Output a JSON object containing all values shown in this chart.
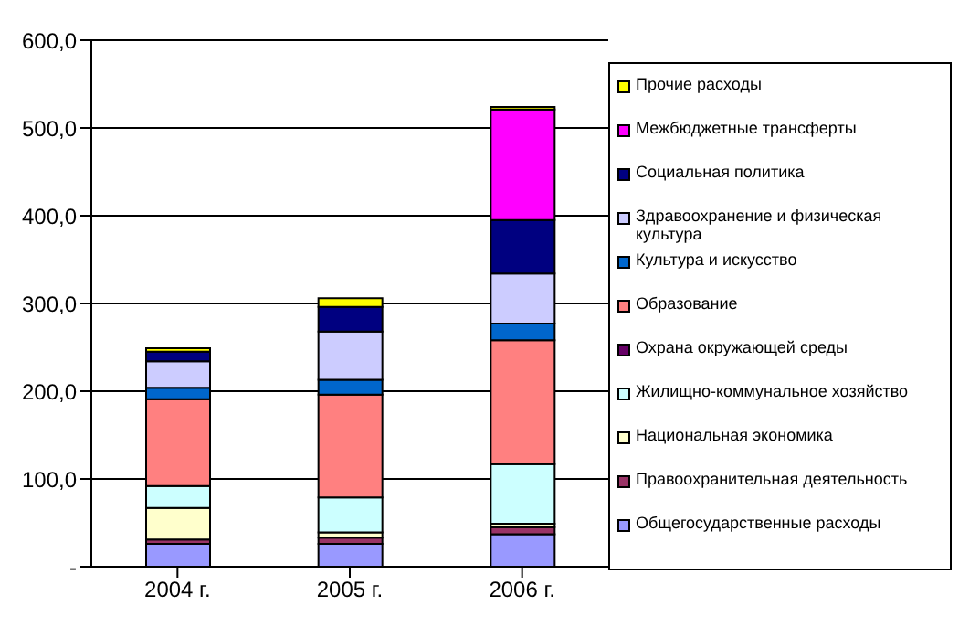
{
  "chart_data": {
    "type": "bar",
    "stacked": true,
    "categories": [
      "2004 г.",
      "2005 г.",
      "2006 г."
    ],
    "series": [
      {
        "name": "Общегосударственные расходы",
        "color": "#9999ff",
        "values": [
          26,
          26,
          37
        ]
      },
      {
        "name": "Правоохранительная деятельность",
        "color": "#993366",
        "values": [
          5,
          7,
          8
        ]
      },
      {
        "name": "Национальная экономика",
        "color": "#ffffcc",
        "values": [
          36,
          6,
          4
        ]
      },
      {
        "name": "Жилищно-коммунальное хозяйство",
        "color": "#ccffff",
        "values": [
          25,
          40,
          68
        ]
      },
      {
        "name": "Охрана окружающей среды",
        "color": "#660066",
        "values": [
          0,
          0,
          0
        ]
      },
      {
        "name": "Образование",
        "color": "#ff8080",
        "values": [
          99,
          117,
          141
        ]
      },
      {
        "name": "Культура и искусство",
        "color": "#0066cc",
        "values": [
          13,
          17,
          19
        ]
      },
      {
        "name": "Здравоохранение и физическая культура",
        "color": "#ccccff",
        "values": [
          30,
          55,
          57
        ]
      },
      {
        "name": "Социальная политика",
        "color": "#000080",
        "values": [
          11,
          28,
          61
        ]
      },
      {
        "name": "Межбюджетные трансферты",
        "color": "#ff00ff",
        "values": [
          0,
          0,
          126
        ]
      },
      {
        "name": "Прочие расходы",
        "color": "#ffff00",
        "values": [
          4,
          10,
          3
        ]
      }
    ],
    "ylim": [
      0,
      600
    ],
    "yticks": [
      {
        "value": 0,
        "label": "-"
      },
      {
        "value": 100,
        "label": "100,0"
      },
      {
        "value": 200,
        "label": "200,0"
      },
      {
        "value": 300,
        "label": "300,0"
      },
      {
        "value": 400,
        "label": "400,0"
      },
      {
        "value": 500,
        "label": "500,0"
      },
      {
        "value": 600,
        "label": "600,0"
      }
    ],
    "grid": "y",
    "legend": "right"
  }
}
